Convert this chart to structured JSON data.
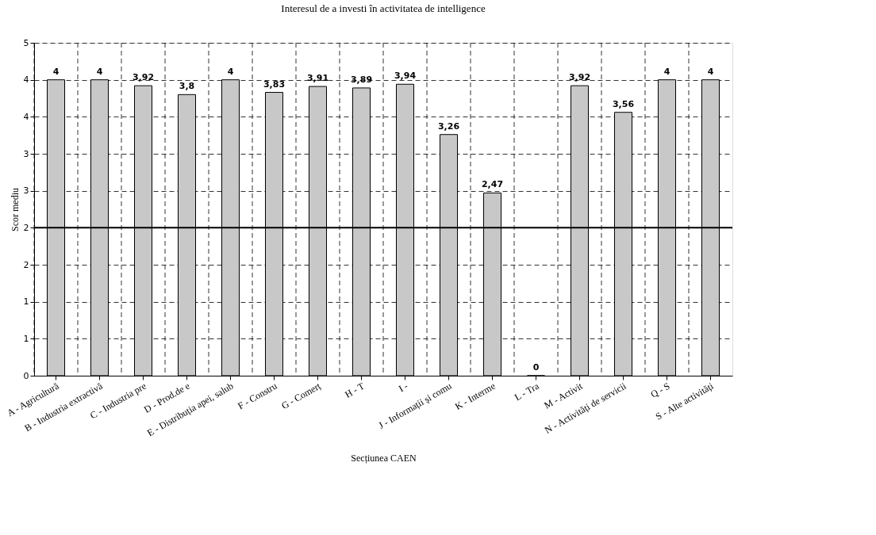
{
  "chart_data": {
    "type": "bar",
    "title": "Interesul de a investi în activitatea de intelligence",
    "xlabel": "Secțiunea CAEN",
    "ylabel": "Scor mediu",
    "categories": [
      "A - Agricultură",
      "B - Industria extractivă",
      "C - Industria pre",
      "D - Prod.de e",
      "E - Distribuția apei, salub",
      "F - Constru",
      "G - Comerț",
      "H - T",
      "I -",
      "J - Informații și comu",
      "K - Interme",
      "L - Tra",
      "M - Activit",
      "N - Activități de servicii",
      "Q - S",
      "S - Alte activități"
    ],
    "values": [
      4,
      4,
      3.92,
      3.8,
      4,
      3.83,
      3.91,
      3.89,
      3.94,
      3.26,
      2.47,
      0,
      3.92,
      3.56,
      4,
      4
    ],
    "value_labels": [
      "4",
      "4",
      "3,92",
      "3,8",
      "4",
      "3,83",
      "3,91",
      "3,89",
      "3,94",
      "3,26",
      "2,47",
      "0",
      "3,92",
      "3,56",
      "4",
      "4"
    ],
    "color": "#c8c8c8",
    "ylim": [
      0,
      4.5
    ],
    "yticks": [
      0,
      {
        "value": 0.5,
        "label": "1"
      },
      {
        "value": 1,
        "label": "1"
      },
      {
        "value": 1.5,
        "label": "2"
      },
      {
        "value": 2,
        "label": "2"
      },
      {
        "value": 2.5,
        "label": "3"
      },
      {
        "value": 3,
        "label": "3"
      },
      {
        "value": 3.5,
        "label": "4"
      },
      {
        "value": 4,
        "label": "4"
      },
      {
        "value": 4.5,
        "label": "5"
      }
    ],
    "grid": true,
    "ref_lines": [
      {
        "axis": "y",
        "value": 2,
        "color": "#000000",
        "line_style": "solid"
      }
    ]
  }
}
